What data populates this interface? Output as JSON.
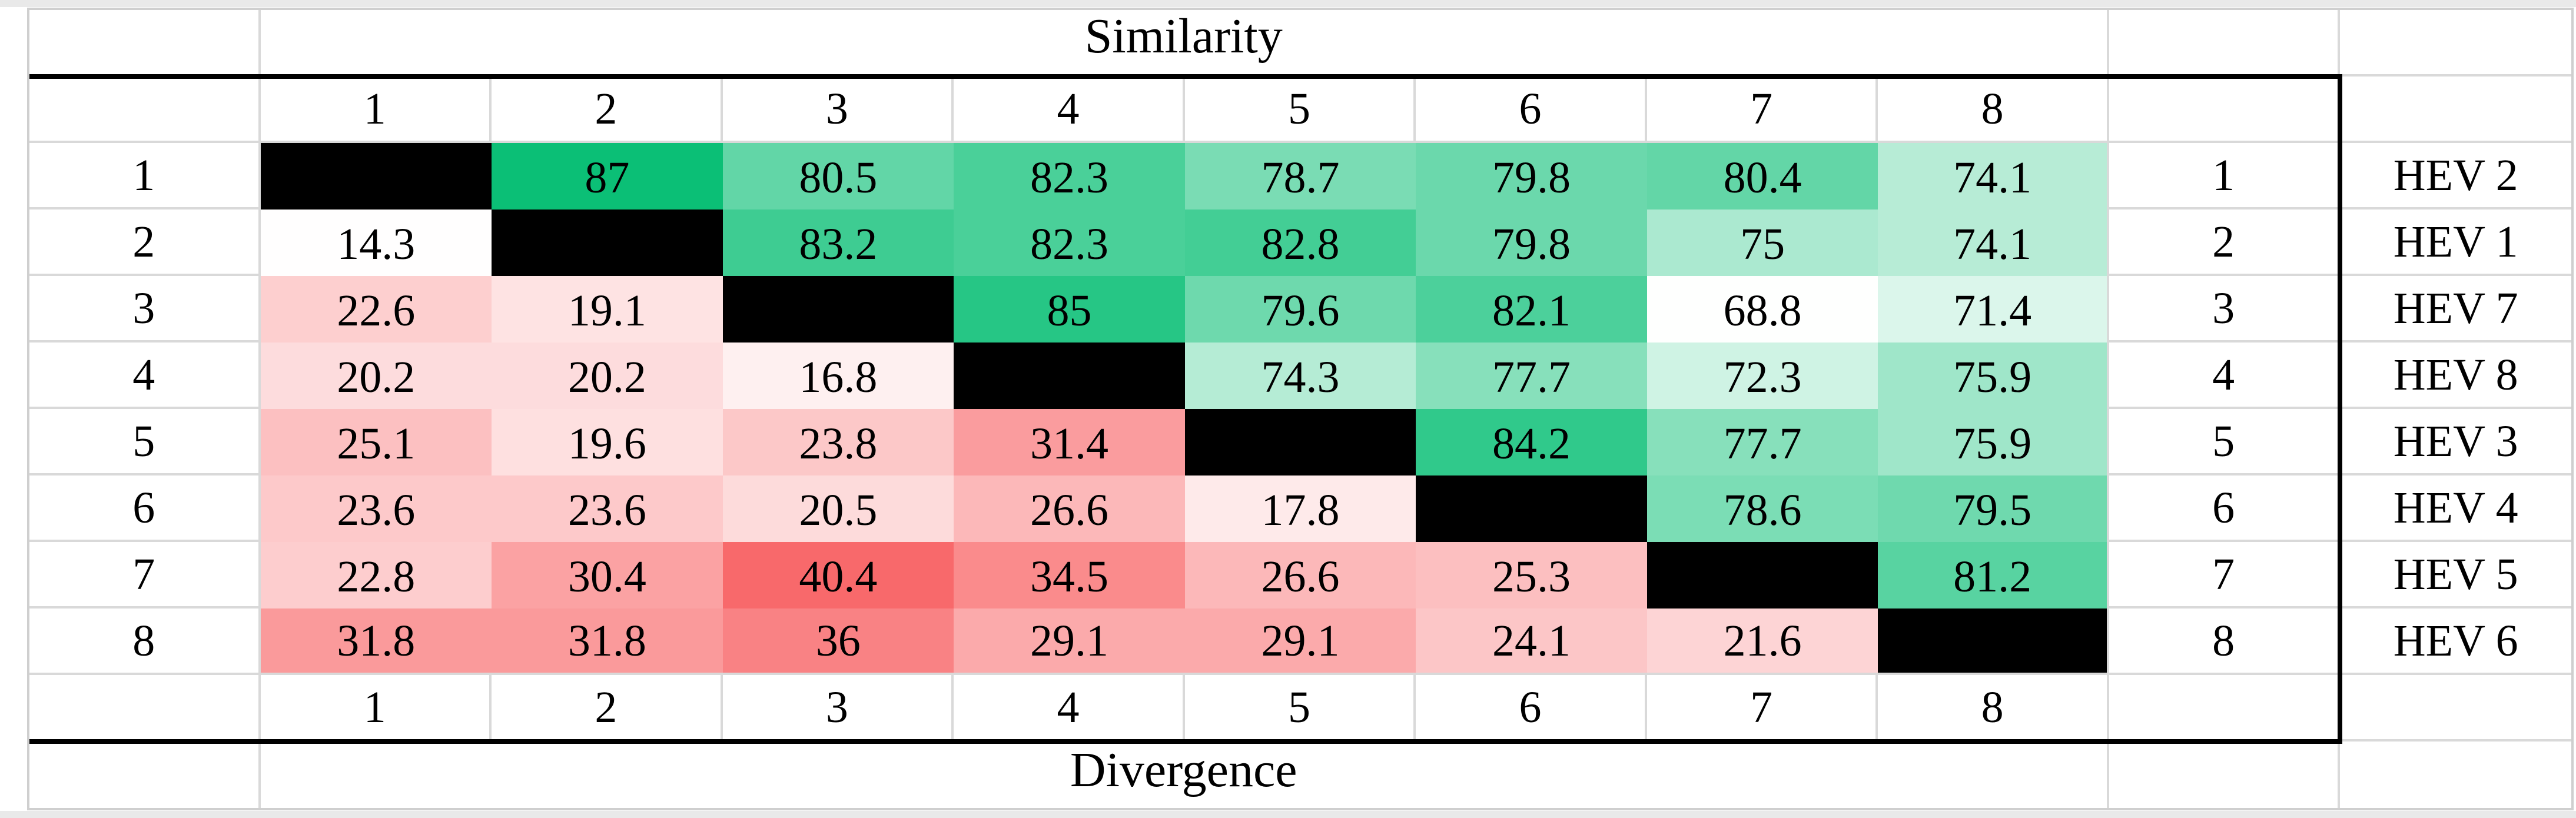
{
  "chart_data": {
    "type": "heatmap",
    "upper_triangle_label": "Similarity",
    "lower_triangle_label": "Divergence",
    "col_indices_top": [
      "1",
      "2",
      "3",
      "4",
      "5",
      "6",
      "7",
      "8"
    ],
    "col_indices_bottom": [
      "1",
      "2",
      "3",
      "4",
      "5",
      "6",
      "7",
      "8"
    ],
    "row_indices_left": [
      "1",
      "2",
      "3",
      "4",
      "5",
      "6",
      "7",
      "8"
    ],
    "row_indices_right": [
      "1",
      "2",
      "3",
      "4",
      "5",
      "6",
      "7",
      "8"
    ],
    "sequence_names": [
      "HEV 2",
      "HEV 1",
      "HEV 7",
      "HEV 8",
      "HEV 3",
      "HEV 4",
      "HEV 5",
      "HEV 6"
    ],
    "matrix": [
      [
        null,
        87,
        80.5,
        82.3,
        78.7,
        79.8,
        80.4,
        74.1
      ],
      [
        14.3,
        null,
        83.2,
        82.3,
        82.8,
        79.8,
        75,
        74.1
      ],
      [
        22.6,
        19.1,
        null,
        85,
        79.6,
        82.1,
        68.8,
        71.4
      ],
      [
        20.2,
        20.2,
        16.8,
        null,
        74.3,
        77.7,
        72.3,
        75.9
      ],
      [
        25.1,
        19.6,
        23.8,
        31.4,
        null,
        84.2,
        77.7,
        75.9
      ],
      [
        23.6,
        23.6,
        20.5,
        26.6,
        17.8,
        null,
        78.6,
        79.5
      ],
      [
        22.8,
        30.4,
        40.4,
        34.5,
        26.6,
        25.3,
        null,
        81.2
      ],
      [
        31.8,
        31.8,
        36,
        29.1,
        29.1,
        24.1,
        21.6,
        null
      ]
    ],
    "color_scale": {
      "similarity": {
        "min_value": 68.8,
        "max_value": 87,
        "min_color": "#FEFFFE",
        "max_color": "#0BBF76"
      },
      "divergence": {
        "min_value": 14.3,
        "max_value": 40.4,
        "min_color": "#FFFEFE",
        "max_color": "#F8696B"
      },
      "diagonal_color": "#000000",
      "gridline_color": "#D9D9D9",
      "box_border_color": "#000000"
    }
  }
}
